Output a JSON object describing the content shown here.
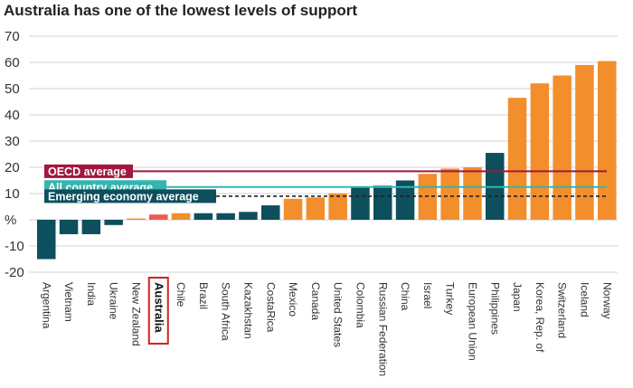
{
  "chart_data": {
    "type": "bar",
    "title": "Australia has one of the lowest levels of support",
    "ylim": [
      -20,
      70
    ],
    "yticks": [
      "70",
      "60",
      "50",
      "40",
      "30",
      "20",
      "10",
      "%",
      "-10",
      "-20"
    ],
    "ytick_values": [
      70,
      60,
      50,
      40,
      30,
      20,
      10,
      0,
      -10,
      -20
    ],
    "grid": true,
    "categories": [
      "Argentina",
      "Vietnam",
      "India",
      "Ukraine",
      "New Zealand",
      "Australia",
      "Chile",
      "Brazil",
      "South Africa",
      "Kazakhstan",
      "CostaRica",
      "Mexico",
      "Canada",
      "United States",
      "Colombia",
      "Russian Federation",
      "China",
      "Israel",
      "Turkey",
      "European Union",
      "Philippines",
      "Japan",
      "Korea, Rep. of",
      "Switzerland",
      "Iceland",
      "Norway"
    ],
    "values": [
      -15,
      -5.5,
      -5.5,
      -2,
      0.5,
      2,
      2.5,
      2.5,
      2.5,
      3,
      5.5,
      8,
      8.5,
      10,
      12.5,
      13,
      15,
      17.5,
      19.5,
      20,
      25.5,
      46.5,
      52,
      55,
      59,
      60.5
    ],
    "bar_groups": [
      "emerging",
      "emerging",
      "emerging",
      "emerging",
      "oecd",
      "australia",
      "oecd",
      "emerging",
      "emerging",
      "emerging",
      "emerging",
      "oecd",
      "oecd",
      "oecd",
      "emerging",
      "emerging",
      "emerging",
      "oecd",
      "oecd",
      "oecd",
      "emerging",
      "oecd",
      "oecd",
      "oecd",
      "oecd",
      "oecd"
    ],
    "highlight_category": "Australia",
    "colors": {
      "emerging": "#0d4f5c",
      "oecd": "#f28e2b",
      "australia": "#ef5a4c",
      "oecd_line": "#a3173f",
      "all_line": "#33b5b0",
      "emerging_line": "#222222",
      "highlight_box": "#d62020",
      "grid": "#d3d3d3"
    },
    "reference_lines": [
      {
        "label": "OECD average",
        "value": 18.5,
        "style": "solid",
        "color_key": "oecd_line"
      },
      {
        "label": "All country average",
        "value": 12.5,
        "style": "solid",
        "color_key": "all_line"
      },
      {
        "label": "Emerging  economy average",
        "value": 9,
        "style": "dashed",
        "color_key": "emerging_line"
      }
    ]
  }
}
